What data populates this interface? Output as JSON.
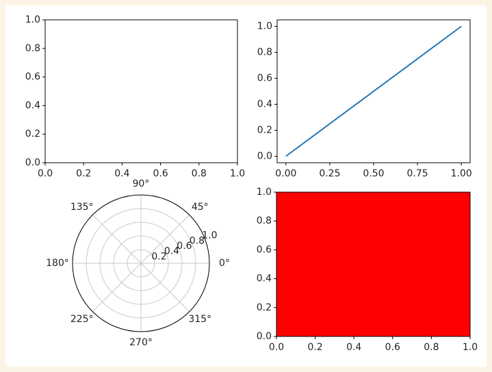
{
  "chart_data": [
    {
      "type": "axes",
      "xlim": [
        0,
        1
      ],
      "ylim": [
        0,
        1
      ],
      "xticks": [
        {
          "value": 0,
          "label": "0.0"
        },
        0.2,
        0.4,
        0.6,
        0.8,
        {
          "value": 1,
          "label": "1.0"
        }
      ],
      "yticks": [
        {
          "value": 0,
          "label": "0.0"
        },
        0.2,
        0.4,
        0.6,
        0.8,
        {
          "value": 1,
          "label": "1.0"
        }
      ]
    },
    {
      "type": "line",
      "x": [
        0,
        1
      ],
      "values": [
        0,
        1
      ],
      "color": "#1f77b4",
      "xlim": [
        -0.05,
        1.05
      ],
      "ylim": [
        -0.05,
        1.05
      ],
      "xticks": [
        {
          "value": 0,
          "label": "0.00"
        },
        0.25,
        {
          "value": 0.5,
          "label": "0.50"
        },
        0.75,
        {
          "value": 1,
          "label": "1.00"
        }
      ],
      "yticks": [
        {
          "value": 0,
          "label": "0.0"
        },
        0.2,
        0.4,
        0.6,
        0.8,
        {
          "value": 1,
          "label": "1.0"
        }
      ]
    },
    {
      "type": "polar",
      "grid": true,
      "rlim": [
        0,
        1
      ],
      "rticks": [
        0.2,
        0.4,
        0.6,
        0.8,
        {
          "value": 1,
          "label": "1.0"
        }
      ],
      "thetaticks": [
        {
          "value": 0,
          "label": "0°"
        },
        {
          "value": 45,
          "label": "45°"
        },
        {
          "value": 90,
          "label": "90°"
        },
        {
          "value": 135,
          "label": "135°"
        },
        {
          "value": 180,
          "label": "180°"
        },
        {
          "value": 225,
          "label": "225°"
        },
        {
          "value": 270,
          "label": "270°"
        },
        {
          "value": 315,
          "label": "315°"
        }
      ]
    },
    {
      "type": "area",
      "x": [
        0,
        1
      ],
      "values": [
        1,
        1
      ],
      "color": "#ff0000",
      "xlim": [
        0,
        1
      ],
      "ylim": [
        0,
        1
      ],
      "xticks": [
        {
          "value": 0,
          "label": "0.0"
        },
        0.2,
        0.4,
        0.6,
        0.8,
        {
          "value": 1,
          "label": "1.0"
        }
      ],
      "yticks": [
        {
          "value": 0,
          "label": "0.0"
        },
        0.2,
        0.4,
        0.6,
        0.8,
        {
          "value": 1,
          "label": "1.0"
        }
      ]
    }
  ]
}
